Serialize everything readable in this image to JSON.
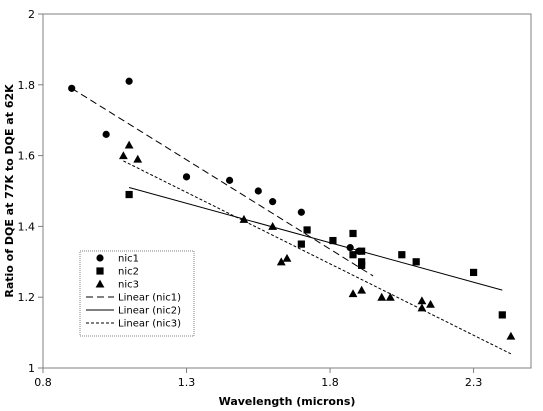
{
  "chart_data": {
    "type": "scatter",
    "xlabel": "Wavelength (microns)",
    "ylabel": "Ratio of DQE at 77K to DQE at 62K",
    "xlim": [
      0.8,
      2.5
    ],
    "ylim": [
      1.0,
      2.0
    ],
    "x_ticks": [
      0.8,
      1.3,
      1.8,
      2.3
    ],
    "x_tick_labels": [
      "0.8",
      "1.3",
      "1.8",
      "2.3"
    ],
    "y_ticks": [
      1.0,
      1.2,
      1.4,
      1.6,
      1.8,
      2.0
    ],
    "y_tick_labels": [
      "1",
      "1.2",
      "1.4",
      "1.6",
      "1.8",
      "2"
    ],
    "grid": false,
    "legend_position": "bottom-left",
    "series": [
      {
        "name": "nic1",
        "marker": "circle",
        "points": [
          [
            0.9,
            1.79
          ],
          [
            1.02,
            1.66
          ],
          [
            1.1,
            1.81
          ],
          [
            1.3,
            1.54
          ],
          [
            1.45,
            1.53
          ],
          [
            1.55,
            1.5
          ],
          [
            1.6,
            1.47
          ],
          [
            1.7,
            1.44
          ],
          [
            1.87,
            1.34
          ],
          [
            1.9,
            1.33
          ]
        ]
      },
      {
        "name": "nic2",
        "marker": "square",
        "points": [
          [
            1.1,
            1.49
          ],
          [
            1.7,
            1.35
          ],
          [
            1.72,
            1.39
          ],
          [
            1.81,
            1.36
          ],
          [
            1.88,
            1.38
          ],
          [
            1.88,
            1.32
          ],
          [
            1.91,
            1.33
          ],
          [
            1.91,
            1.3
          ],
          [
            1.91,
            1.29
          ],
          [
            2.05,
            1.32
          ],
          [
            2.1,
            1.3
          ],
          [
            2.3,
            1.27
          ],
          [
            2.4,
            1.15
          ]
        ]
      },
      {
        "name": "nic3",
        "marker": "triangle",
        "points": [
          [
            1.08,
            1.6
          ],
          [
            1.1,
            1.63
          ],
          [
            1.13,
            1.59
          ],
          [
            1.5,
            1.42
          ],
          [
            1.6,
            1.4
          ],
          [
            1.63,
            1.3
          ],
          [
            1.65,
            1.31
          ],
          [
            1.88,
            1.21
          ],
          [
            1.91,
            1.22
          ],
          [
            1.98,
            1.2
          ],
          [
            2.01,
            1.2
          ],
          [
            2.12,
            1.19
          ],
          [
            2.12,
            1.17
          ],
          [
            2.15,
            1.18
          ],
          [
            2.43,
            1.09
          ]
        ]
      }
    ],
    "trendlines": [
      {
        "name": "Linear (nic1)",
        "dash": "dashed",
        "x": [
          0.9,
          1.95
        ],
        "y": [
          1.79,
          1.26
        ]
      },
      {
        "name": "Linear (nic2)",
        "dash": "solid",
        "x": [
          1.1,
          2.4
        ],
        "y": [
          1.51,
          1.22
        ]
      },
      {
        "name": "Linear (nic3)",
        "dash": "dotted",
        "x": [
          1.08,
          2.43
        ],
        "y": [
          1.585,
          1.04
        ]
      }
    ]
  }
}
